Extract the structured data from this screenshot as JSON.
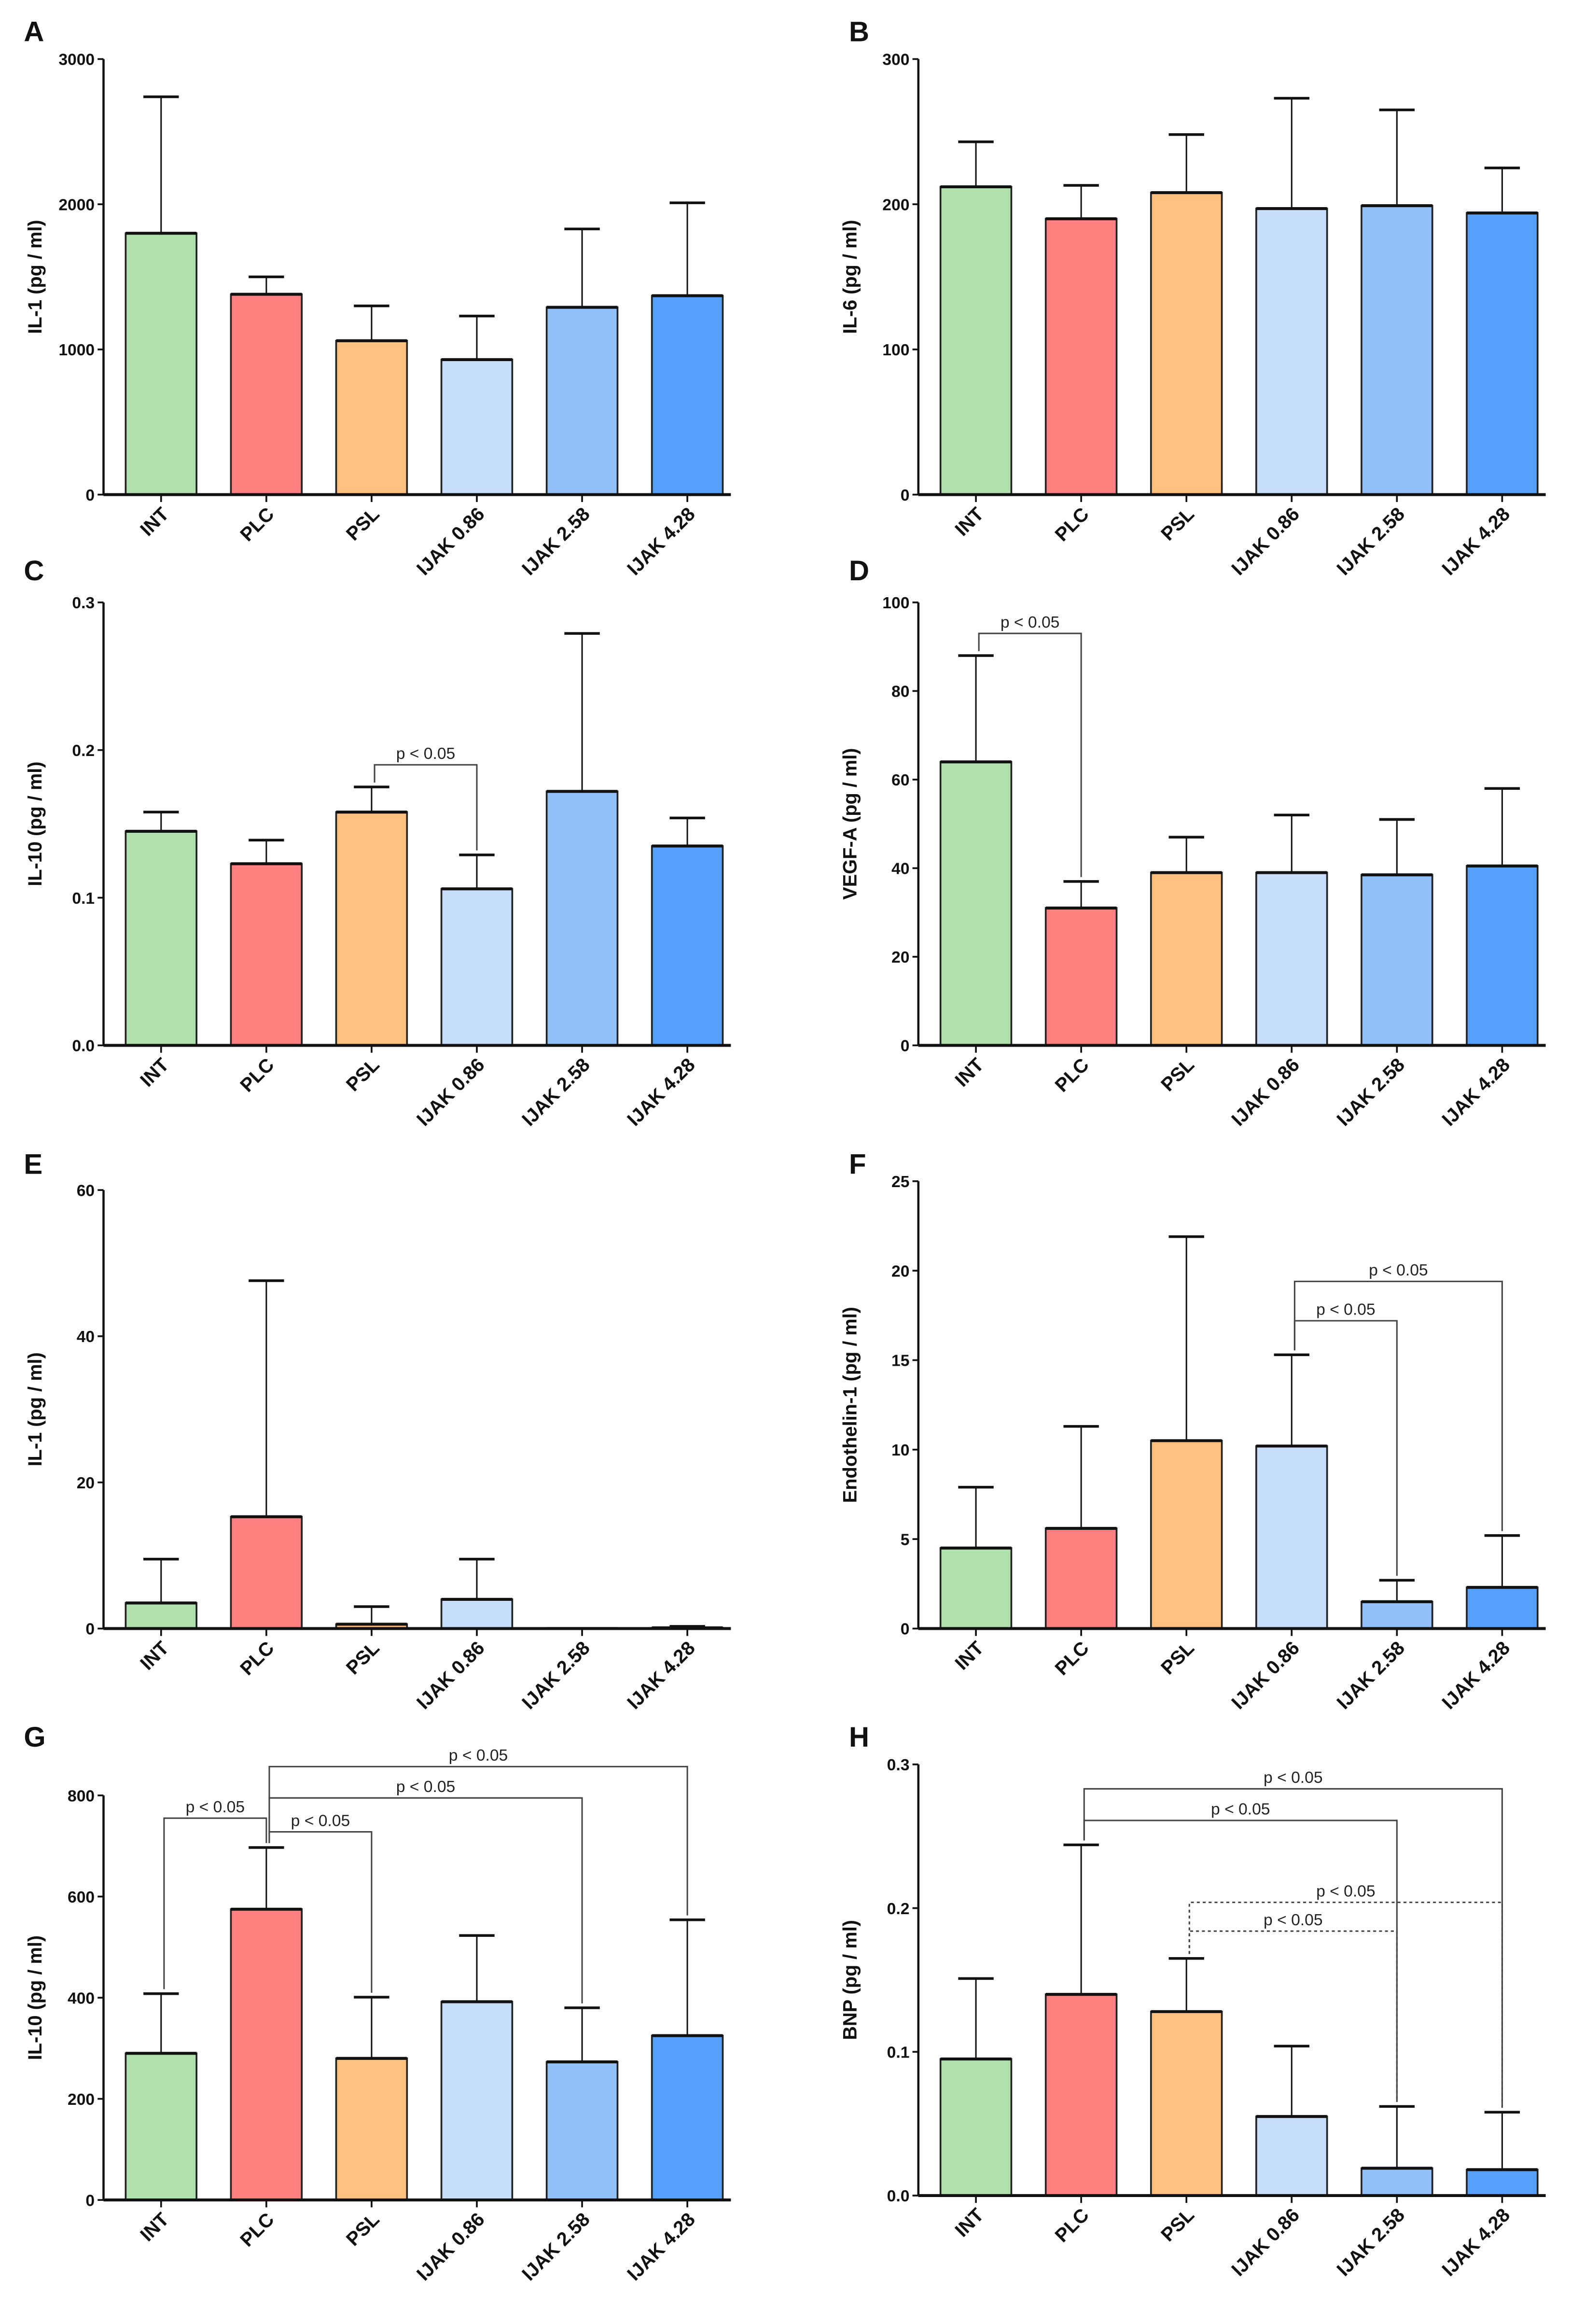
{
  "colors": [
    "#b0e0ad",
    "#ff8080",
    "#ffc080",
    "#c8ddf7",
    "#93c0f8",
    "#57a0fa"
  ],
  "chart_data": [
    {
      "panel": "A",
      "type": "bar",
      "categories": [
        "INT",
        "PLC",
        "PSL",
        "IJAK 0.86",
        "IJAK 2.58",
        "IJAK 4.28"
      ],
      "ylabel": "IL-1 (pg / ml)",
      "ylim": [
        0,
        3000
      ],
      "yticks": [
        0,
        1000,
        2000,
        3000
      ],
      "ytick_labels": [
        "0",
        "1000",
        "2000",
        "3000"
      ],
      "values": [
        1800,
        1380,
        1060,
        930,
        1290,
        1370
      ],
      "error_upper": [
        2740,
        1500,
        1300,
        1230,
        1830,
        2010
      ],
      "significance": []
    },
    {
      "panel": "B",
      "type": "bar",
      "categories": [
        "INT",
        "PLC",
        "PSL",
        "IJAK 0.86",
        "IJAK 2.58",
        "IJAK 4.28"
      ],
      "ylabel": "IL-6 (pg / ml)",
      "ylim": [
        0,
        300
      ],
      "yticks": [
        0,
        100,
        200,
        300
      ],
      "ytick_labels": [
        "0",
        "100",
        "200",
        "300"
      ],
      "values": [
        212,
        190,
        208,
        197,
        199,
        194
      ],
      "error_upper": [
        243,
        213,
        248,
        273,
        265,
        225
      ],
      "significance": []
    },
    {
      "panel": "C",
      "type": "bar",
      "categories": [
        "INT",
        "PLC",
        "PSL",
        "IJAK 0.86",
        "IJAK 2.58",
        "IJAK 4.28"
      ],
      "ylabel": "IL-10 (pg / ml)",
      "ylim": [
        0,
        0.3
      ],
      "yticks": [
        0,
        0.1,
        0.2,
        0.3
      ],
      "ytick_labels": [
        "0.0",
        "0.1",
        "0.2",
        "0.3"
      ],
      "values": [
        0.145,
        0.123,
        0.158,
        0.106,
        0.172,
        0.135
      ],
      "error_upper": [
        0.158,
        0.139,
        0.175,
        0.129,
        0.279,
        0.154
      ],
      "significance": [
        {
          "from": 2,
          "to": 3,
          "y": 0.19,
          "label": "p < 0.05",
          "dashed": false
        }
      ]
    },
    {
      "panel": "D",
      "type": "bar",
      "categories": [
        "INT",
        "PLC",
        "PSL",
        "IJAK 0.86",
        "IJAK 2.58",
        "IJAK 4.28"
      ],
      "ylabel": "VEGF-A (pg / ml)",
      "ylim": [
        0,
        100
      ],
      "yticks": [
        0,
        20,
        40,
        60,
        80,
        100
      ],
      "ytick_labels": [
        "0",
        "20",
        "40",
        "60",
        "80",
        "100"
      ],
      "values": [
        64,
        31,
        39,
        39,
        38.5,
        40.5
      ],
      "error_upper": [
        88,
        37,
        47,
        52,
        51,
        58
      ],
      "significance": [
        {
          "from": 0,
          "to": 1,
          "y": 93,
          "label": "p < 0.05",
          "dashed": false
        }
      ]
    },
    {
      "panel": "E",
      "type": "bar",
      "categories": [
        "INT",
        "PLC",
        "PSL",
        "IJAK 0.86",
        "IJAK 2.58",
        "IJAK 4.28"
      ],
      "ylabel": "IL-1 (pg / ml)",
      "ylim": [
        0,
        60
      ],
      "yticks": [
        0,
        20,
        40,
        60
      ],
      "ytick_labels": [
        "0",
        "20",
        "40",
        "60"
      ],
      "values": [
        3.5,
        15.3,
        0.6,
        4,
        0,
        0.1
      ],
      "error_upper": [
        9.5,
        47.6,
        3,
        9.5,
        0,
        0.3
      ],
      "significance": []
    },
    {
      "panel": "F",
      "type": "bar",
      "categories": [
        "INT",
        "PLC",
        "PSL",
        "IJAK 0.86",
        "IJAK 2.58",
        "IJAK 4.28"
      ],
      "ylabel": "Endothelin-1 (pg / ml)",
      "ylim": [
        0,
        25
      ],
      "yticks": [
        0,
        5,
        10,
        15,
        20,
        25
      ],
      "ytick_labels": [
        "0",
        "5",
        "10",
        "15",
        "20",
        "25"
      ],
      "values": [
        4.5,
        5.6,
        10.5,
        10.2,
        1.5,
        2.3
      ],
      "error_upper": [
        7.9,
        11.3,
        21.9,
        15.3,
        2.7,
        5.2
      ],
      "significance": [
        {
          "from": 3,
          "to": 4,
          "y": 17.2,
          "label": "p < 0.05",
          "dashed": false
        },
        {
          "from": 3,
          "to": 5,
          "y": 19.4,
          "label": "p < 0.05",
          "dashed": false
        }
      ]
    },
    {
      "panel": "G",
      "type": "bar",
      "categories": [
        "INT",
        "PLC",
        "PSL",
        "IJAK 0.86",
        "IJAK 2.58",
        "IJAK 4.28"
      ],
      "ylabel": "IL-10 (pg / ml)",
      "ylim": [
        0,
        800
      ],
      "yticks": [
        0,
        200,
        400,
        600,
        800
      ],
      "ytick_labels": [
        "0",
        "200",
        "400",
        "600",
        "800"
      ],
      "values": [
        290,
        575,
        280,
        392,
        273,
        325
      ],
      "error_upper": [
        408,
        697,
        401,
        523,
        380,
        554
      ],
      "significance": [
        {
          "from": 0,
          "to": 1,
          "y": 755,
          "label": "p < 0.05",
          "dashed": false
        },
        {
          "from": 1,
          "to": 2,
          "y": 728,
          "label": "p < 0.05",
          "dashed": false
        },
        {
          "from": 1,
          "to": 4,
          "y": 795,
          "label": "p < 0.05",
          "dashed": false
        },
        {
          "from": 1,
          "to": 5,
          "y": 857,
          "label": "p < 0.05",
          "dashed": false
        }
      ]
    },
    {
      "panel": "H",
      "type": "bar",
      "categories": [
        "INT",
        "PLC",
        "PSL",
        "IJAK 0.86",
        "IJAK 2.58",
        "IJAK 4.28"
      ],
      "ylabel": "BNP (pg / ml)",
      "ylim": [
        0,
        0.3
      ],
      "yticks": [
        0,
        0.1,
        0.2,
        0.3
      ],
      "ytick_labels": [
        "0.0",
        "0.1",
        "0.2",
        "0.3"
      ],
      "values": [
        0.095,
        0.14,
        0.128,
        0.055,
        0.019,
        0.018
      ],
      "error_upper": [
        0.151,
        0.244,
        0.165,
        0.104,
        0.062,
        0.058
      ],
      "significance": [
        {
          "from": 1,
          "to": 5,
          "y": 0.283,
          "label": "p < 0.05",
          "dashed": false
        },
        {
          "from": 1,
          "to": 4,
          "y": 0.261,
          "label": "p < 0.05",
          "dashed": false
        },
        {
          "from": 2,
          "to": 5,
          "y": 0.204,
          "label": "p < 0.05",
          "dashed": true
        },
        {
          "from": 2,
          "to": 4,
          "y": 0.184,
          "label": "p < 0.05",
          "dashed": true
        }
      ]
    }
  ]
}
